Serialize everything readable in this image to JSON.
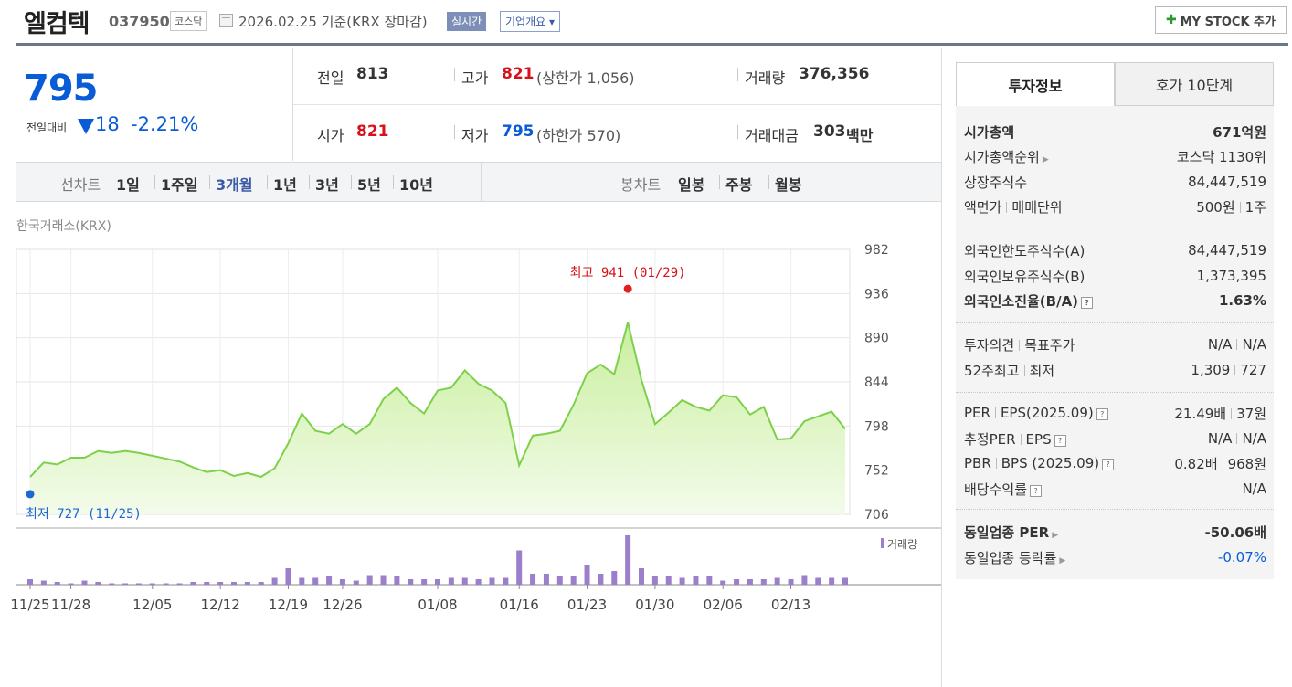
{
  "header": {
    "name": "엘컴텍",
    "code": "037950",
    "market": "코스닥",
    "date": "2026.02.25  기준(KRX 장마감)",
    "realtime": "실시간",
    "overview": "기업개요 ▾",
    "mystock_plus": "✚",
    "mystock": "MY STOCK 추가"
  },
  "price": {
    "current": "795",
    "vs_label": "전일대비",
    "change": "18",
    "change_pct": "-2.21%"
  },
  "quote": {
    "prev_label": "전일",
    "prev": "813",
    "high_label": "고가",
    "high": "821",
    "upper": "(상한가 1,056)",
    "volume_label": "거래량",
    "volume": "376,356",
    "open_label": "시가",
    "open": "821",
    "low_label": "저가",
    "low": "795",
    "lower": "(하한가 570)",
    "amount_label": "거래대금",
    "amount": "303",
    "amount_unit": "백만"
  },
  "periods": {
    "line_label": "선차트",
    "line_items": [
      "1일",
      "1주일",
      "3개월",
      "1년",
      "3년",
      "5년",
      "10년"
    ],
    "active_index": 2,
    "candle_label": "봉차트",
    "candle_items": [
      "일봉",
      "주봉",
      "월봉"
    ]
  },
  "chart_data": {
    "type": "area",
    "source_label": "한국거래소(KRX)",
    "x_ticks": [
      "11/25",
      "11/28",
      "12/05",
      "12/12",
      "12/19",
      "12/26",
      "01/08",
      "01/16",
      "01/23",
      "01/30",
      "02/06",
      "02/13"
    ],
    "y_ticks": [
      982,
      936,
      890,
      844,
      798,
      752,
      706
    ],
    "ylim": [
      706,
      982
    ],
    "high_label": "최고 941 (01/29)",
    "low_label": "최저 727 (11/25)",
    "high_marker": {
      "index": 44,
      "value": 941
    },
    "low_marker": {
      "index": 0,
      "value": 727
    },
    "volume_legend": "거래량",
    "price_color": "#7ed04b",
    "volume_color": "#9b7fcb",
    "tick_index": [
      0,
      3,
      9,
      14,
      19,
      23,
      30,
      36,
      41,
      46,
      51,
      56
    ],
    "values": [
      745,
      760,
      758,
      765,
      765,
      772,
      770,
      772,
      770,
      767,
      764,
      761,
      755,
      750,
      752,
      746,
      749,
      745,
      754,
      780,
      811,
      793,
      790,
      800,
      790,
      800,
      826,
      838,
      822,
      811,
      835,
      838,
      856,
      842,
      835,
      822,
      757,
      788,
      790,
      793,
      820,
      853,
      862,
      852,
      906,
      846,
      800,
      812,
      825,
      818,
      814,
      830,
      828,
      810,
      818,
      784,
      785,
      803,
      808,
      813,
      795
    ],
    "volumes": [
      4,
      3,
      2,
      1,
      3,
      2,
      1,
      1,
      1,
      1,
      1,
      1,
      2,
      2,
      2,
      2,
      2,
      2,
      5,
      12,
      5,
      5,
      6,
      4,
      3,
      7,
      7,
      6,
      4,
      4,
      4,
      5,
      5,
      4,
      5,
      5,
      25,
      8,
      8,
      6,
      6,
      14,
      8,
      10,
      36,
      12,
      6,
      6,
      5,
      6,
      6,
      3,
      4,
      4,
      4,
      5,
      4,
      7,
      5,
      5,
      5
    ]
  },
  "panel": {
    "tab_info": "투자정보",
    "tab_quote": "호가 10단계",
    "rows": [
      {
        "l": "시가총액",
        "r": "671억원"
      },
      {
        "l": "시가총액순위",
        "r": "코스닥 1130위"
      },
      {
        "l": "상장주식수",
        "r": "84,447,519"
      },
      {
        "l1": "액면가",
        "l2": "매매단위",
        "r1": "500원",
        "r2": "1주"
      },
      {
        "l": "외국인한도주식수(A)",
        "r": "84,447,519"
      },
      {
        "l": "외국인보유주식수(B)",
        "r": "1,373,395"
      },
      {
        "l": "외국인소진율(B/A)",
        "r": "1.63%"
      },
      {
        "l1": "투자의견",
        "l2": "목표주가",
        "r1": "N/A",
        "r2": "N/A"
      },
      {
        "l1": "52주최고",
        "l2": "최저",
        "r1": "1,309",
        "r2": "727"
      },
      {
        "l1": "PER",
        "l2": "EPS(2025.09)",
        "r1": "21.49배",
        "r2": "37원"
      },
      {
        "l1": "추정PER",
        "l2": "EPS",
        "r1": "N/A",
        "r2": "N/A"
      },
      {
        "l1": "PBR",
        "l2": "BPS (2025.09)",
        "r1": "0.82배",
        "r2": "968원"
      },
      {
        "l": "배당수익률",
        "r": "N/A"
      },
      {
        "l": "동일업종 PER",
        "r": "-50.06배"
      },
      {
        "l": "동일업종 등락률",
        "r": "-0.07%"
      }
    ]
  }
}
